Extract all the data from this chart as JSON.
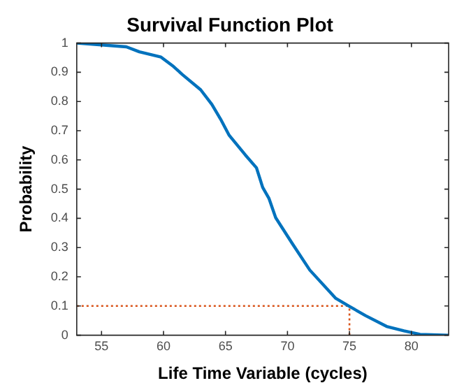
{
  "chart_data": {
    "type": "line",
    "title": "Survival Function Plot",
    "xlabel": "Life Time Variable (cycles)",
    "ylabel": "Probability",
    "x": [
      53,
      57.0,
      58.05,
      59.8,
      60.8,
      61.5,
      63.0,
      63.9,
      64.6,
      65.3,
      66.6,
      67.5,
      68.0,
      68.5,
      69.05,
      70.4,
      71.8,
      73.9,
      74.9,
      76.3,
      78.0,
      79.4,
      80.7,
      83
    ],
    "series": [
      {
        "color": "#0072bd",
        "values": [
          1.0,
          0.987,
          0.97,
          0.952,
          0.92,
          0.893,
          0.84,
          0.79,
          0.74,
          0.684,
          0.617,
          0.573,
          0.506,
          0.469,
          0.402,
          0.313,
          0.223,
          0.126,
          0.101,
          0.067,
          0.03,
          0.015,
          0.003,
          0
        ]
      }
    ],
    "xlim": [
      53,
      83
    ],
    "xticks": [
      55,
      60,
      65,
      70,
      75,
      80
    ],
    "ylim": [
      0,
      1
    ],
    "yticks": [
      0,
      0.1,
      0.2,
      0.3,
      0.4,
      0.5,
      0.6,
      0.7,
      0.8,
      0.9,
      1
    ],
    "ref_lines": [
      {
        "axis": "y",
        "value": 0.1,
        "color": "#d95319",
        "line_style": "dotted"
      },
      {
        "axis": "x",
        "value": 75,
        "color": "#d95319",
        "line_style": "dotted"
      }
    ],
    "grid": false,
    "legend": false,
    "marker": "none",
    "line_style": "solid"
  }
}
